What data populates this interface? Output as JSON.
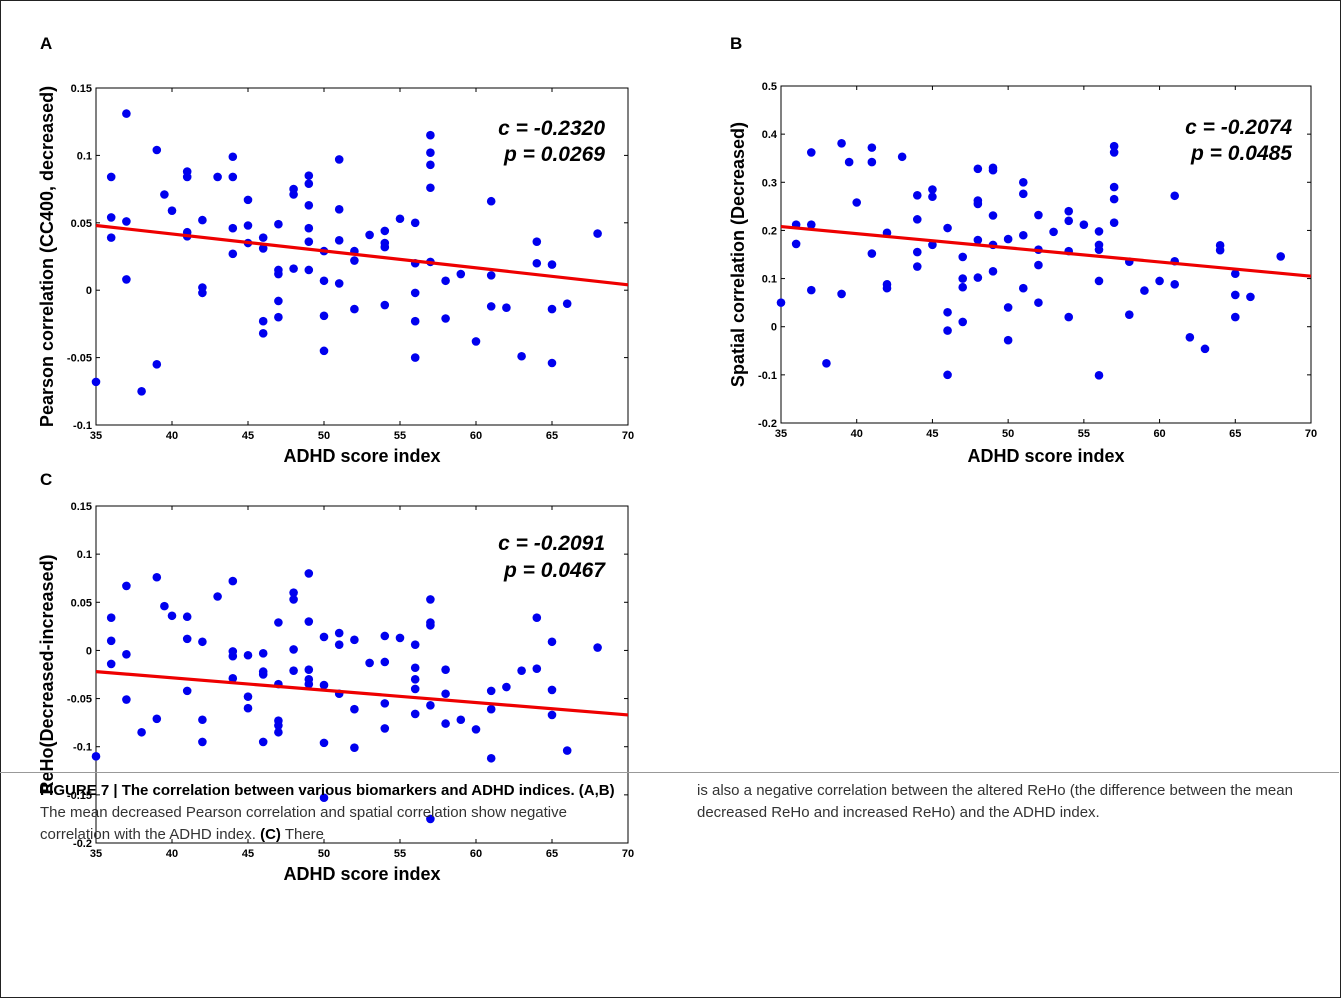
{
  "panel_letters": [
    "A",
    "B",
    "C"
  ],
  "caption": {
    "heading": "FIGURE 7 | The correlation between various biomarkers and ADHD indices.",
    "ab_ref": "(A,B)",
    "ab_text": " The mean decreased Pearson correlation and spatial correlation show negative correlation with the ADHD index. ",
    "c_ref": "(C)",
    "c_text_left": " There",
    "right_text": "is also a negative correlation between the altered ReHo (the difference between the mean decreased ReHo and increased ReHo) and the ADHD index."
  },
  "colors": {
    "points": "#0000ee",
    "fit": "#ee0000",
    "axes": "#000000"
  },
  "chart_data": [
    {
      "type": "scatter",
      "panel": "A",
      "xlabel": "ADHD score index",
      "ylabel": "Pearson correlation (CC400, decreased)",
      "xlim": [
        35,
        70
      ],
      "ylim": [
        -0.1,
        0.15
      ],
      "xticks": [
        35,
        40,
        45,
        50,
        55,
        60,
        65,
        70
      ],
      "xtick_labels": [
        "35",
        "40",
        "45",
        "50",
        "55",
        "60",
        "65",
        "70"
      ],
      "yticks": [
        -0.1,
        -0.05,
        0,
        0.05,
        0.1,
        0.15
      ],
      "ytick_labels": [
        "-0.1",
        "-0.05",
        "0",
        "0.05",
        "0.1",
        "0.15"
      ],
      "annotation": [
        "c = -0.2320",
        "p = 0.0269"
      ],
      "fit_line": [
        [
          35,
          0.048
        ],
        [
          70,
          0.004
        ]
      ],
      "grid": false,
      "points": [
        [
          35,
          -0.068
        ],
        [
          36,
          0.084
        ],
        [
          36,
          0.054
        ],
        [
          36,
          0.039
        ],
        [
          37,
          0.131
        ],
        [
          37,
          0.051
        ],
        [
          37,
          0.008
        ],
        [
          38,
          -0.075
        ],
        [
          39,
          0.104
        ],
        [
          39,
          -0.055
        ],
        [
          39.5,
          0.071
        ],
        [
          40,
          0.059
        ],
        [
          41,
          0.088
        ],
        [
          41,
          0.084
        ],
        [
          41,
          0.043
        ],
        [
          41,
          0.04
        ],
        [
          42,
          0.052
        ],
        [
          42,
          0.002
        ],
        [
          42,
          -0.002
        ],
        [
          43,
          0.084
        ],
        [
          44,
          0.099
        ],
        [
          44,
          0.084
        ],
        [
          44,
          0.046
        ],
        [
          44,
          0.027
        ],
        [
          45,
          0.067
        ],
        [
          45,
          0.048
        ],
        [
          45,
          0.035
        ],
        [
          46,
          0.039
        ],
        [
          46,
          0.031
        ],
        [
          46,
          -0.023
        ],
        [
          46,
          -0.032
        ],
        [
          47,
          0.049
        ],
        [
          47,
          0.015
        ],
        [
          47,
          0.012
        ],
        [
          47,
          -0.008
        ],
        [
          47,
          -0.02
        ],
        [
          48,
          0.075
        ],
        [
          48,
          0.071
        ],
        [
          48,
          0.016
        ],
        [
          49,
          0.085
        ],
        [
          49,
          0.079
        ],
        [
          49,
          0.063
        ],
        [
          49,
          0.046
        ],
        [
          49,
          0.036
        ],
        [
          49,
          0.015
        ],
        [
          50,
          0.029
        ],
        [
          50,
          0.007
        ],
        [
          50,
          -0.019
        ],
        [
          50,
          -0.045
        ],
        [
          51,
          0.097
        ],
        [
          51,
          0.06
        ],
        [
          51,
          0.037
        ],
        [
          51,
          0.005
        ],
        [
          52,
          0.029
        ],
        [
          52,
          0.022
        ],
        [
          52,
          -0.014
        ],
        [
          53,
          0.041
        ],
        [
          54,
          0.044
        ],
        [
          54,
          0.035
        ],
        [
          54,
          0.032
        ],
        [
          54,
          -0.011
        ],
        [
          55,
          0.053
        ],
        [
          56,
          0.05
        ],
        [
          56,
          0.02
        ],
        [
          56,
          -0.002
        ],
        [
          56,
          -0.023
        ],
        [
          56,
          -0.05
        ],
        [
          57,
          0.115
        ],
        [
          57,
          0.102
        ],
        [
          57,
          0.093
        ],
        [
          57,
          0.076
        ],
        [
          57,
          0.021
        ],
        [
          58,
          0.007
        ],
        [
          58,
          -0.021
        ],
        [
          59,
          0.012
        ],
        [
          60,
          -0.038
        ],
        [
          61,
          0.066
        ],
        [
          61,
          0.011
        ],
        [
          61,
          -0.012
        ],
        [
          62,
          -0.013
        ],
        [
          63,
          -0.049
        ],
        [
          64,
          0.036
        ],
        [
          64,
          0.02
        ],
        [
          65,
          0.019
        ],
        [
          65,
          -0.014
        ],
        [
          65,
          -0.054
        ],
        [
          66,
          -0.01
        ],
        [
          68,
          0.042
        ]
      ]
    },
    {
      "type": "scatter",
      "panel": "B",
      "xlabel": "ADHD score index",
      "ylabel": "Spatial correlation (Decreased)",
      "xlim": [
        35,
        70
      ],
      "ylim": [
        -0.2,
        0.5
      ],
      "xticks": [
        35,
        40,
        45,
        50,
        55,
        60,
        65,
        70
      ],
      "xtick_labels": [
        "35",
        "40",
        "45",
        "50",
        "55",
        "60",
        "65",
        "70"
      ],
      "yticks": [
        -0.2,
        -0.1,
        0,
        0.1,
        0.2,
        0.3,
        0.4,
        0.5
      ],
      "ytick_labels": [
        "-0.2",
        "-0.1",
        "0",
        "0.1",
        "0.2",
        "0.3",
        "0.4",
        "0.5"
      ],
      "annotation": [
        "c = -0.2074",
        "p = 0.0485"
      ],
      "fit_line": [
        [
          35,
          0.208
        ],
        [
          70,
          0.105
        ]
      ],
      "grid": false,
      "points": [
        [
          35,
          0.05
        ],
        [
          36,
          0.212
        ],
        [
          36,
          0.172
        ],
        [
          37,
          0.362
        ],
        [
          37,
          0.212
        ],
        [
          37,
          0.076
        ],
        [
          38,
          -0.076
        ],
        [
          39,
          0.381
        ],
        [
          39,
          0.068
        ],
        [
          39.5,
          0.342
        ],
        [
          40,
          0.258
        ],
        [
          41,
          0.372
        ],
        [
          41,
          0.342
        ],
        [
          41,
          0.152
        ],
        [
          42,
          0.195
        ],
        [
          42,
          0.088
        ],
        [
          42,
          0.08
        ],
        [
          43,
          0.353
        ],
        [
          44,
          0.273
        ],
        [
          44,
          0.223
        ],
        [
          44,
          0.155
        ],
        [
          44,
          0.125
        ],
        [
          45,
          0.285
        ],
        [
          45,
          0.27
        ],
        [
          45,
          0.17
        ],
        [
          46,
          0.205
        ],
        [
          46,
          0.03
        ],
        [
          46,
          -0.008
        ],
        [
          46,
          -0.1
        ],
        [
          47,
          0.145
        ],
        [
          47,
          0.1
        ],
        [
          47,
          0.082
        ],
        [
          47,
          0.01
        ],
        [
          48,
          0.328
        ],
        [
          48,
          0.262
        ],
        [
          48,
          0.255
        ],
        [
          48,
          0.18
        ],
        [
          48,
          0.102
        ],
        [
          49,
          0.33
        ],
        [
          49,
          0.325
        ],
        [
          49,
          0.231
        ],
        [
          49,
          0.17
        ],
        [
          49,
          0.115
        ],
        [
          50,
          0.182
        ],
        [
          50,
          0.04
        ],
        [
          50,
          -0.028
        ],
        [
          51,
          0.3
        ],
        [
          51,
          0.276
        ],
        [
          51,
          0.19
        ],
        [
          51,
          0.08
        ],
        [
          52,
          0.232
        ],
        [
          52,
          0.16
        ],
        [
          52,
          0.128
        ],
        [
          52,
          0.05
        ],
        [
          53,
          0.197
        ],
        [
          54,
          0.24
        ],
        [
          54,
          0.22
        ],
        [
          54,
          0.157
        ],
        [
          54,
          0.02
        ],
        [
          55,
          0.212
        ],
        [
          56,
          0.198
        ],
        [
          56,
          0.17
        ],
        [
          56,
          0.16
        ],
        [
          56,
          0.095
        ],
        [
          56,
          -0.101
        ],
        [
          57,
          0.375
        ],
        [
          57,
          0.362
        ],
        [
          57,
          0.29
        ],
        [
          57,
          0.265
        ],
        [
          57,
          0.216
        ],
        [
          58,
          0.135
        ],
        [
          58,
          0.025
        ],
        [
          59,
          0.075
        ],
        [
          60,
          0.095
        ],
        [
          61,
          0.272
        ],
        [
          61,
          0.136
        ],
        [
          61,
          0.088
        ],
        [
          62,
          -0.022
        ],
        [
          63,
          -0.046
        ],
        [
          64,
          0.169
        ],
        [
          64,
          0.159
        ],
        [
          65,
          0.11
        ],
        [
          65,
          0.066
        ],
        [
          65,
          0.02
        ],
        [
          66,
          0.062
        ],
        [
          68,
          0.146
        ]
      ]
    },
    {
      "type": "scatter",
      "panel": "C",
      "xlabel": "ADHD score index",
      "ylabel": "ReHo(Decreased-increased)",
      "xlim": [
        35,
        70
      ],
      "ylim": [
        -0.2,
        0.15
      ],
      "xticks": [
        35,
        40,
        45,
        50,
        55,
        60,
        65,
        70
      ],
      "xtick_labels": [
        "35",
        "40",
        "45",
        "50",
        "55",
        "60",
        "65",
        "70"
      ],
      "yticks": [
        -0.2,
        -0.15,
        -0.1,
        -0.05,
        0,
        0.05,
        0.1,
        0.15
      ],
      "ytick_labels": [
        "-0.2",
        "-0.15",
        "-0.1",
        "-0.05",
        "0",
        "0.05",
        "0.1",
        "0.15"
      ],
      "annotation": [
        "c = -0.2091",
        "p = 0.0467"
      ],
      "fit_line": [
        [
          35,
          -0.022
        ],
        [
          70,
          -0.067
        ]
      ],
      "grid": false,
      "points": [
        [
          35,
          -0.11
        ],
        [
          36,
          0.034
        ],
        [
          36,
          0.01
        ],
        [
          36,
          -0.014
        ],
        [
          37,
          0.067
        ],
        [
          37,
          -0.004
        ],
        [
          37,
          -0.051
        ],
        [
          38,
          -0.085
        ],
        [
          39,
          0.076
        ],
        [
          39,
          -0.071
        ],
        [
          39.5,
          0.046
        ],
        [
          40,
          0.036
        ],
        [
          41,
          0.035
        ],
        [
          41,
          0.012
        ],
        [
          41,
          -0.042
        ],
        [
          42,
          0.009
        ],
        [
          42,
          -0.072
        ],
        [
          42,
          -0.095
        ],
        [
          43,
          0.056
        ],
        [
          44,
          0.072
        ],
        [
          44,
          -0.001
        ],
        [
          44,
          -0.006
        ],
        [
          44,
          -0.029
        ],
        [
          45,
          -0.005
        ],
        [
          45,
          -0.048
        ],
        [
          45,
          -0.06
        ],
        [
          46,
          -0.003
        ],
        [
          46,
          -0.022
        ],
        [
          46,
          -0.025
        ],
        [
          46,
          -0.095
        ],
        [
          47,
          0.029
        ],
        [
          47,
          -0.035
        ],
        [
          47,
          -0.073
        ],
        [
          47,
          -0.078
        ],
        [
          47,
          -0.085
        ],
        [
          48,
          0.06
        ],
        [
          48,
          0.053
        ],
        [
          48,
          0.001
        ],
        [
          48,
          -0.021
        ],
        [
          49,
          0.08
        ],
        [
          49,
          0.03
        ],
        [
          49,
          -0.02
        ],
        [
          49,
          -0.03
        ],
        [
          49,
          -0.035
        ],
        [
          50,
          0.014
        ],
        [
          50,
          -0.036
        ],
        [
          50,
          -0.096
        ],
        [
          50,
          -0.153
        ],
        [
          51,
          0.018
        ],
        [
          51,
          0.006
        ],
        [
          51,
          -0.045
        ],
        [
          52,
          0.011
        ],
        [
          52,
          -0.061
        ],
        [
          52,
          -0.101
        ],
        [
          53,
          -0.013
        ],
        [
          54,
          0.015
        ],
        [
          54,
          -0.012
        ],
        [
          54,
          -0.055
        ],
        [
          54,
          -0.081
        ],
        [
          55,
          0.013
        ],
        [
          56,
          0.006
        ],
        [
          56,
          -0.018
        ],
        [
          56,
          -0.03
        ],
        [
          56,
          -0.04
        ],
        [
          56,
          -0.066
        ],
        [
          57,
          0.053
        ],
        [
          57,
          0.029
        ],
        [
          57,
          0.026
        ],
        [
          57,
          -0.057
        ],
        [
          57,
          -0.175
        ],
        [
          58,
          -0.02
        ],
        [
          58,
          -0.045
        ],
        [
          58,
          -0.076
        ],
        [
          59,
          -0.072
        ],
        [
          60,
          -0.082
        ],
        [
          61,
          -0.042
        ],
        [
          61,
          -0.061
        ],
        [
          61,
          -0.112
        ],
        [
          62,
          -0.038
        ],
        [
          63,
          -0.021
        ],
        [
          64,
          0.034
        ],
        [
          64,
          -0.019
        ],
        [
          65,
          0.009
        ],
        [
          65,
          -0.041
        ],
        [
          65,
          -0.067
        ],
        [
          66,
          -0.104
        ],
        [
          68,
          0.003
        ]
      ]
    }
  ]
}
